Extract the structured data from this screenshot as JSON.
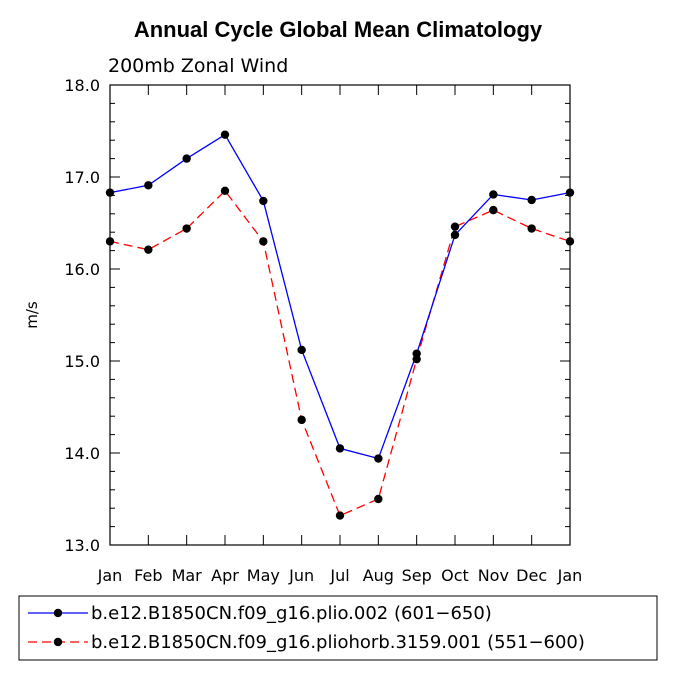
{
  "chart_data": {
    "type": "line",
    "title": "Annual Cycle Global Mean Climatology",
    "subtitle": "200mb Zonal Wind",
    "xlabel": "",
    "ylabel": "m/s",
    "categories": [
      "Jan",
      "Feb",
      "Mar",
      "Apr",
      "May",
      "Jun",
      "Jul",
      "Aug",
      "Sep",
      "Oct",
      "Nov",
      "Dec",
      "Jan"
    ],
    "ylim": [
      13.0,
      18.0
    ],
    "yticks": [
      "13.0",
      "14.0",
      "15.0",
      "16.0",
      "17.0",
      "18.0"
    ],
    "grid": false,
    "legend_position": "bottom",
    "series": [
      {
        "name": "b.e12.B1850CN.f09_g16.plio.002 (601−650)",
        "color": "#0000ff",
        "dash": "solid",
        "values": [
          16.83,
          16.91,
          17.2,
          17.46,
          16.74,
          15.12,
          14.05,
          13.94,
          15.08,
          16.37,
          16.81,
          16.75,
          16.83
        ]
      },
      {
        "name": "b.e12.B1850CN.f09_g16.pliohorb.3159.001 (551−600)",
        "color": "#ff0000",
        "dash": "dashed",
        "values": [
          16.3,
          16.21,
          16.44,
          16.85,
          16.3,
          14.36,
          13.32,
          13.5,
          15.02,
          16.46,
          16.64,
          16.44,
          16.3
        ]
      }
    ]
  }
}
